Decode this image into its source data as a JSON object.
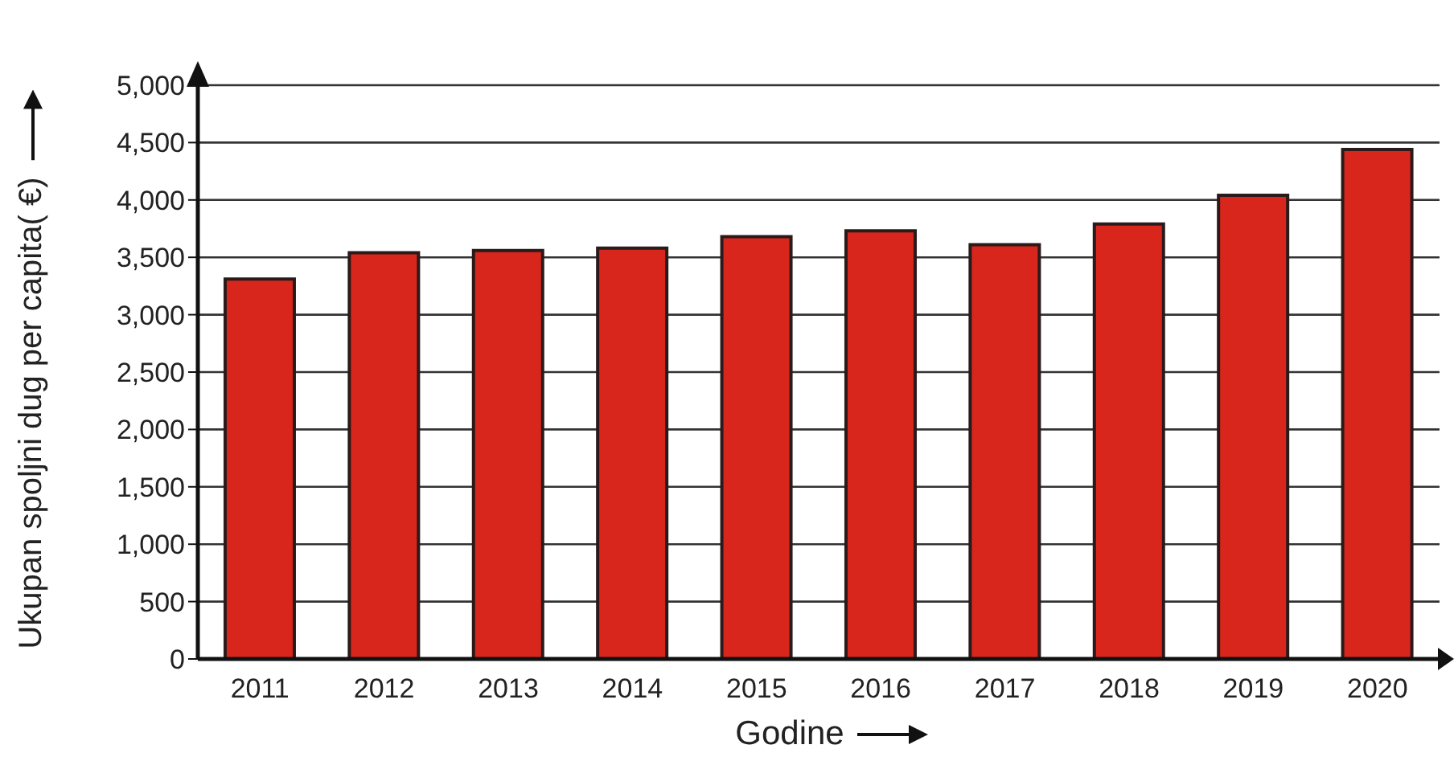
{
  "chart_data": {
    "type": "bar",
    "xlabel": "Godine",
    "ylabel": "Ukupan spoljni dug per capita( €)",
    "categories": [
      "2011",
      "2012",
      "2013",
      "2014",
      "2015",
      "2016",
      "2017",
      "2018",
      "2019",
      "2020"
    ],
    "values": [
      3310,
      3540,
      3560,
      3580,
      3680,
      3730,
      3610,
      3790,
      4040,
      4440
    ],
    "color": "#d9261c",
    "ylim": [
      0,
      5000
    ],
    "yticks": [
      0,
      500,
      {
        "value": 1000,
        "label": "1,000"
      },
      {
        "value": 1500,
        "label": "1,500"
      },
      {
        "value": 2000,
        "label": "2,000"
      },
      {
        "value": 2500,
        "label": "2,500"
      },
      {
        "value": 3000,
        "label": "3,000"
      },
      {
        "value": 3500,
        "label": "3,500"
      },
      {
        "value": 4000,
        "label": "4,000"
      },
      {
        "value": 4500,
        "label": "4,500"
      },
      {
        "value": 5000,
        "label": "5,000"
      }
    ],
    "grid": "y"
  }
}
